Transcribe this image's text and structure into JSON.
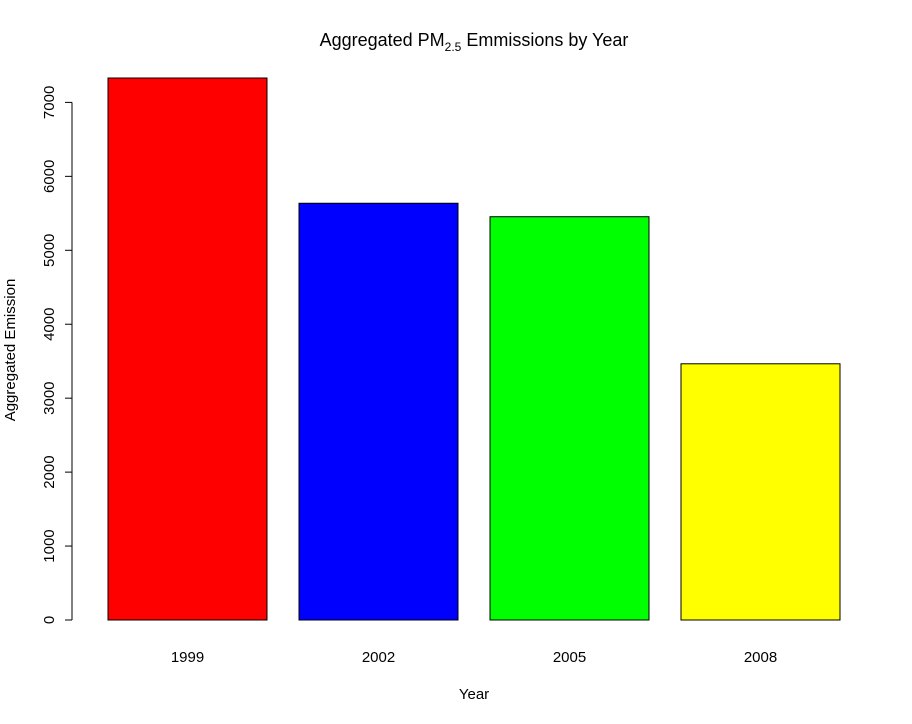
{
  "chart_data": {
    "type": "bar",
    "title": {
      "main": "Aggregated PM",
      "subscript": "2.5",
      "suffix": " Emmissions by Year"
    },
    "xlabel": "Year",
    "ylabel": "Aggregated Emission",
    "categories": [
      "1999",
      "2002",
      "2005",
      "2008"
    ],
    "values": [
      7330,
      5636,
      5454,
      3465
    ],
    "colors": [
      "#ff0000",
      "#0000ff",
      "#00ff00",
      "#ffff00"
    ],
    "yticks": [
      0,
      1000,
      2000,
      3000,
      4000,
      5000,
      6000,
      7000
    ],
    "ylim": [
      0,
      7330
    ],
    "grid": false,
    "legend": "none"
  }
}
